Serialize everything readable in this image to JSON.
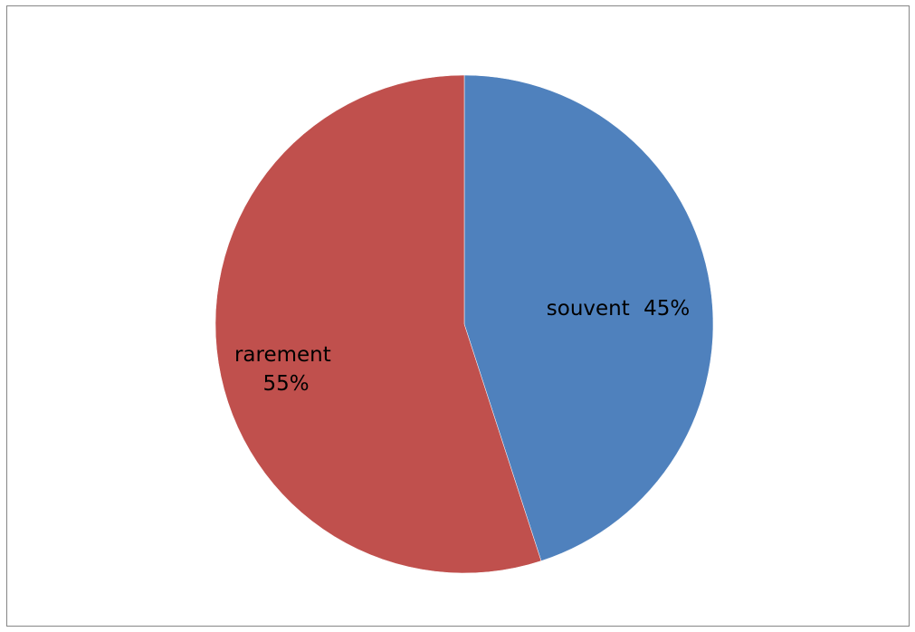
{
  "chart_data": {
    "type": "pie",
    "title": "",
    "slices": [
      {
        "label": "souvent",
        "value": 45,
        "percent_label": "45%",
        "color": "#4F81BD"
      },
      {
        "label": "rarement",
        "value": 55,
        "percent_label": "55%",
        "color": "#C0504D"
      }
    ],
    "start_angle": "12 o'clock",
    "direction": "clockwise",
    "legend": "none",
    "data_labels": "category and percentage inside slices"
  }
}
